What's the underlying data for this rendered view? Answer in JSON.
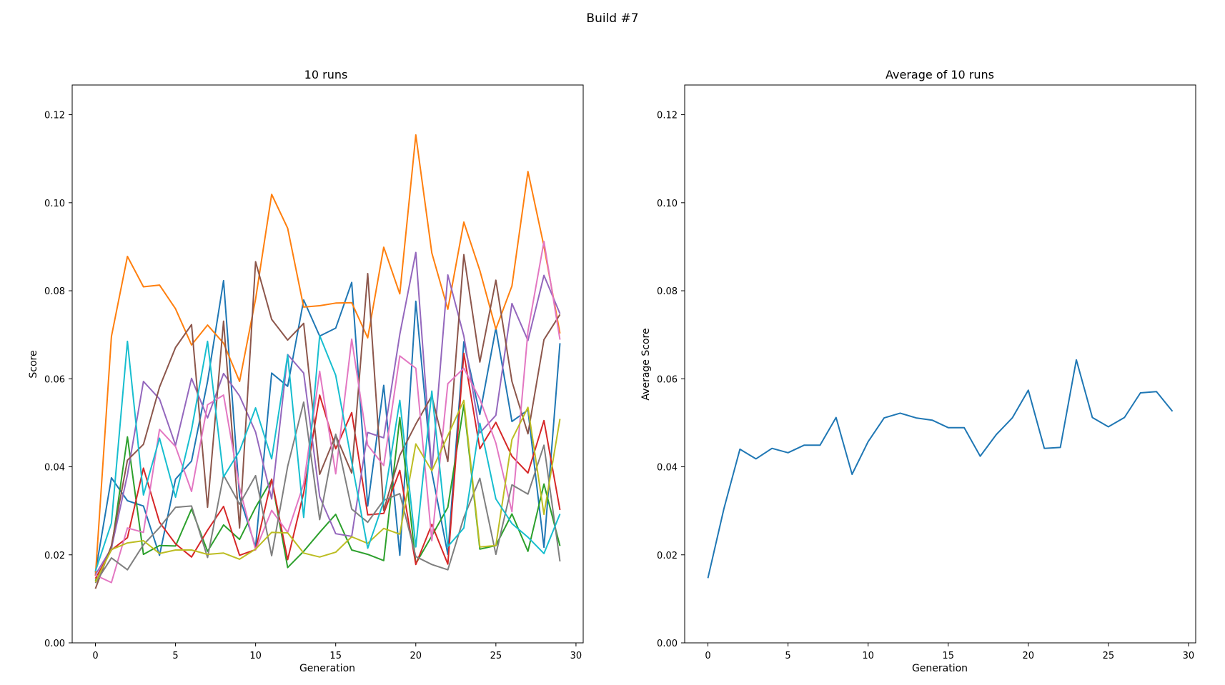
{
  "figure": {
    "suptitle": "Build #7"
  },
  "chart_data": [
    {
      "type": "line",
      "title": "10 runs",
      "xlabel": "Generation",
      "ylabel": "Score",
      "xlim": [
        -1.45,
        30.45
      ],
      "ylim": [
        0,
        0.12675
      ],
      "xticks": [
        0,
        5,
        10,
        15,
        20,
        25,
        30
      ],
      "yticks": [
        0.0,
        0.02,
        0.04,
        0.06,
        0.08,
        0.1,
        0.12
      ],
      "ytick_labels": [
        "0.00",
        "0.02",
        "0.04",
        "0.06",
        "0.08",
        "0.10",
        "0.12"
      ],
      "grid": false,
      "x": [
        0,
        1,
        2,
        3,
        4,
        5,
        6,
        7,
        8,
        9,
        10,
        11,
        12,
        13,
        14,
        15,
        16,
        17,
        18,
        19,
        20,
        21,
        22,
        23,
        24,
        25,
        26,
        27,
        28,
        29
      ],
      "series": [
        {
          "color": "#1f77b4",
          "values": [
            0.016,
            0.0375,
            0.0323,
            0.0311,
            0.0199,
            0.0372,
            0.0413,
            0.0594,
            0.0823,
            0.0331,
            0.0218,
            0.0613,
            0.0583,
            0.0779,
            0.0697,
            0.0715,
            0.0819,
            0.0311,
            0.0585,
            0.0199,
            0.0776,
            0.0388,
            0.0201,
            0.0684,
            0.0519,
            0.0715,
            0.0503,
            0.0529,
            0.0217,
            0.0681
          ]
        },
        {
          "color": "#ff7f0e",
          "values": [
            0.0152,
            0.0696,
            0.0878,
            0.0809,
            0.0813,
            0.0759,
            0.0677,
            0.0722,
            0.0681,
            0.0594,
            0.0781,
            0.1019,
            0.0942,
            0.0763,
            0.0766,
            0.0772,
            0.0773,
            0.0693,
            0.0899,
            0.0793,
            0.1154,
            0.0886,
            0.0758,
            0.0956,
            0.0846,
            0.0713,
            0.0811,
            0.1071,
            0.0901,
            0.0703
          ]
        },
        {
          "color": "#2ca02c",
          "values": [
            0.0141,
            0.0212,
            0.0468,
            0.0201,
            0.0221,
            0.022,
            0.0304,
            0.0208,
            0.0268,
            0.0235,
            0.0308,
            0.0371,
            0.0171,
            0.0208,
            0.0251,
            0.0292,
            0.0211,
            0.0201,
            0.0187,
            0.0512,
            0.018,
            0.0243,
            0.0308,
            0.0541,
            0.0213,
            0.0221,
            0.0293,
            0.0208,
            0.0361,
            0.022
          ]
        },
        {
          "color": "#d62728",
          "values": [
            0.0146,
            0.0211,
            0.0239,
            0.0397,
            0.0274,
            0.0225,
            0.0195,
            0.0256,
            0.031,
            0.0199,
            0.0212,
            0.0372,
            0.0189,
            0.0341,
            0.0563,
            0.0441,
            0.0523,
            0.0291,
            0.0294,
            0.0392,
            0.0178,
            0.0269,
            0.0179,
            0.0658,
            0.0441,
            0.0501,
            0.0424,
            0.0386,
            0.0505,
            0.0302
          ]
        },
        {
          "color": "#9467bd",
          "values": [
            0.0155,
            0.0215,
            0.0382,
            0.0594,
            0.0554,
            0.0449,
            0.0601,
            0.0511,
            0.0612,
            0.0561,
            0.0479,
            0.0327,
            0.0655,
            0.0613,
            0.0332,
            0.0248,
            0.0242,
            0.0478,
            0.0466,
            0.0701,
            0.0887,
            0.0391,
            0.0836,
            0.0697,
            0.0477,
            0.0517,
            0.0771,
            0.0687,
            0.0835,
            0.0748
          ]
        },
        {
          "color": "#8c564b",
          "values": [
            0.0123,
            0.0221,
            0.0415,
            0.0451,
            0.0581,
            0.0671,
            0.0723,
            0.0308,
            0.0731,
            0.0261,
            0.0866,
            0.0735,
            0.0688,
            0.0726,
            0.0383,
            0.0472,
            0.0386,
            0.0839,
            0.0301,
            0.0426,
            0.0497,
            0.0561,
            0.0412,
            0.0882,
            0.0638,
            0.0824,
            0.0594,
            0.0475,
            0.0689,
            0.0746
          ]
        },
        {
          "color": "#e377c2",
          "values": [
            0.0154,
            0.0137,
            0.0261,
            0.0251,
            0.0485,
            0.0446,
            0.0344,
            0.0541,
            0.0563,
            0.0353,
            0.0211,
            0.0301,
            0.0251,
            0.0361,
            0.0617,
            0.0384,
            0.069,
            0.0449,
            0.0403,
            0.0652,
            0.0624,
            0.0232,
            0.0589,
            0.0624,
            0.0554,
            0.0454,
            0.0298,
            0.0708,
            0.0912,
            0.0689
          ]
        },
        {
          "color": "#7f7f7f",
          "values": [
            0.0136,
            0.0193,
            0.0166,
            0.0223,
            0.0262,
            0.0308,
            0.0311,
            0.0194,
            0.0381,
            0.0315,
            0.038,
            0.0198,
            0.0401,
            0.0547,
            0.028,
            0.0474,
            0.0304,
            0.0274,
            0.0324,
            0.0339,
            0.0196,
            0.0178,
            0.0166,
            0.0285,
            0.0374,
            0.0201,
            0.0359,
            0.0338,
            0.0449,
            0.0185
          ]
        },
        {
          "color": "#bcbd22",
          "values": [
            0.0138,
            0.0212,
            0.0227,
            0.0232,
            0.0203,
            0.0211,
            0.0211,
            0.0201,
            0.0204,
            0.019,
            0.0213,
            0.0251,
            0.025,
            0.0204,
            0.0195,
            0.0206,
            0.0241,
            0.0226,
            0.026,
            0.0247,
            0.0452,
            0.0391,
            0.0471,
            0.0551,
            0.0218,
            0.0221,
            0.0462,
            0.0535,
            0.0292,
            0.0509
          ]
        },
        {
          "color": "#17becf",
          "values": [
            0.0163,
            0.0272,
            0.0685,
            0.0336,
            0.0465,
            0.0331,
            0.0484,
            0.0685,
            0.0377,
            0.0436,
            0.0534,
            0.0418,
            0.0654,
            0.0285,
            0.0698,
            0.0608,
            0.0411,
            0.0215,
            0.0321,
            0.0551,
            0.0218,
            0.0572,
            0.0219,
            0.0261,
            0.0499,
            0.0327,
            0.0271,
            0.024,
            0.0203,
            0.0293
          ]
        }
      ]
    },
    {
      "type": "line",
      "title": "Average of 10 runs",
      "xlabel": "Generation",
      "ylabel": "Average Score",
      "xlim": [
        -1.45,
        30.45
      ],
      "ylim": [
        0,
        0.12675
      ],
      "xticks": [
        0,
        5,
        10,
        15,
        20,
        25,
        30
      ],
      "yticks": [
        0.0,
        0.02,
        0.04,
        0.06,
        0.08,
        0.1,
        0.12
      ],
      "ytick_labels": [
        "0.00",
        "0.02",
        "0.04",
        "0.06",
        "0.08",
        "0.10",
        "0.12"
      ],
      "grid": false,
      "x": [
        0,
        1,
        2,
        3,
        4,
        5,
        6,
        7,
        8,
        9,
        10,
        11,
        12,
        13,
        14,
        15,
        16,
        17,
        18,
        19,
        20,
        21,
        22,
        23,
        24,
        25,
        26,
        27,
        28,
        29
      ],
      "series": [
        {
          "color": "#1f77b4",
          "values": [
            0.0147,
            0.0305,
            0.044,
            0.0418,
            0.0442,
            0.0432,
            0.0449,
            0.0449,
            0.0512,
            0.0383,
            0.0457,
            0.0511,
            0.0522,
            0.0511,
            0.0506,
            0.0489,
            0.0489,
            0.0424,
            0.0473,
            0.0511,
            0.0574,
            0.0442,
            0.0444,
            0.0643,
            0.0512,
            0.0491,
            0.0512,
            0.0568,
            0.0571,
            0.0526
          ]
        }
      ]
    }
  ]
}
